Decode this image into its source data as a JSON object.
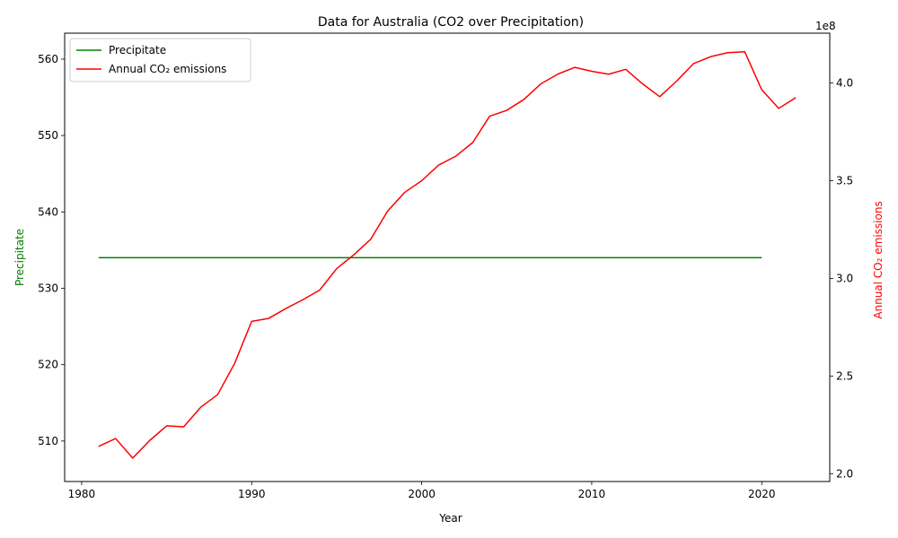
{
  "chart_data": {
    "type": "line",
    "title": "Data for Australia (CO2 over Precipitation)",
    "xlabel": "Year",
    "ylabel_left": "Precipitate",
    "ylabel_right": "Annual CO₂ emissions",
    "right_axis_multiplier": "1e8",
    "xlim": [
      1979,
      2024
    ],
    "ylim_left": [
      504.7,
      563.4
    ],
    "ylim_right": [
      196000000.0,
      425500000.0
    ],
    "x_ticks": [
      1980,
      1990,
      2000,
      2010,
      2020
    ],
    "y_ticks_left": [
      510,
      520,
      530,
      540,
      550,
      560
    ],
    "y_ticks_right": [
      2.0,
      2.5,
      3.0,
      3.5,
      4.0
    ],
    "grid": false,
    "legend_position": "top-left",
    "colors": {
      "precipitate": "#008000",
      "co2": "#ff0000"
    },
    "series": [
      {
        "name": "Precipitate",
        "axis": "left",
        "color": "#008000",
        "x": [
          1981,
          1982,
          1983,
          1984,
          1985,
          1986,
          1987,
          1988,
          1989,
          1990,
          1991,
          1992,
          1993,
          1994,
          1995,
          1996,
          1997,
          1998,
          1999,
          2000,
          2001,
          2002,
          2003,
          2004,
          2005,
          2006,
          2007,
          2008,
          2009,
          2010,
          2011,
          2012,
          2013,
          2014,
          2015,
          2016,
          2017,
          2018,
          2019,
          2020
        ],
        "y": [
          534,
          534,
          534,
          534,
          534,
          534,
          534,
          534,
          534,
          534,
          534,
          534,
          534,
          534,
          534,
          534,
          534,
          534,
          534,
          534,
          534,
          534,
          534,
          534,
          534,
          534,
          534,
          534,
          534,
          534,
          534,
          534,
          534,
          534,
          534,
          534,
          534,
          534,
          534,
          534
        ]
      },
      {
        "name": "Annual CO₂ emissions",
        "axis": "right",
        "color": "#ff0000",
        "x": [
          1981,
          1982,
          1983,
          1984,
          1985,
          1986,
          1987,
          1988,
          1989,
          1990,
          1991,
          1992,
          1993,
          1994,
          1995,
          1996,
          1997,
          1998,
          1999,
          2000,
          2001,
          2002,
          2003,
          2004,
          2005,
          2006,
          2007,
          2008,
          2009,
          2010,
          2011,
          2012,
          2013,
          2014,
          2015,
          2016,
          2017,
          2018,
          2019,
          2020,
          2021,
          2022
        ],
        "y": [
          214000000.0,
          218000000.0,
          208000000.0,
          217000000.0,
          224500000.0,
          224000000.0,
          234000000.0,
          240500000.0,
          256500000.0,
          278000000.0,
          279500000.0,
          284500000.0,
          289000000.0,
          294000000.0,
          305000000.0,
          312000000.0,
          320000000.0,
          334500000.0,
          344000000.0,
          350000000.0,
          358000000.0,
          362500000.0,
          369500000.0,
          383000000.0,
          386000000.0,
          391500000.0,
          399500000.0,
          404500000.0,
          408000000.0,
          406000000.0,
          404500000.0,
          407000000.0,
          399500000.0,
          393000000.0,
          401000000.0,
          410000000.0,
          413500000.0,
          415500000.0,
          416000000.0,
          396500000.0,
          387000000.0,
          392500000.0
        ]
      }
    ]
  }
}
